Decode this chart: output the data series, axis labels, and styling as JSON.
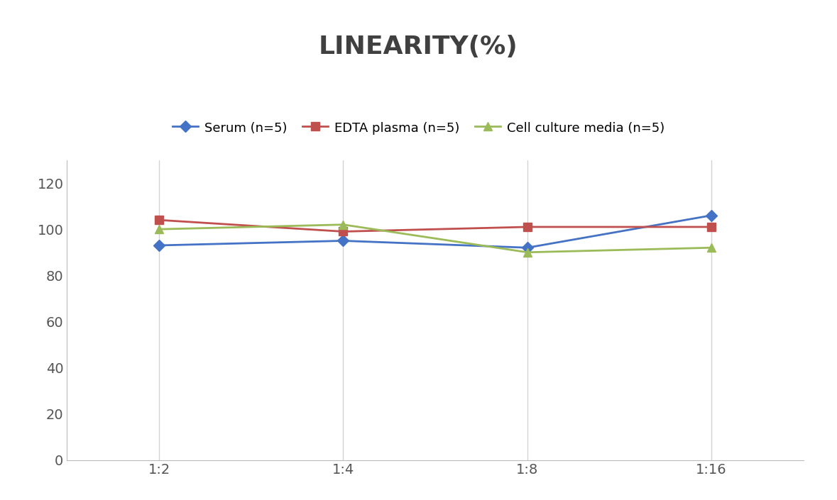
{
  "title": "LINEARITY(%)",
  "x_labels": [
    "1:2",
    "1:4",
    "1:8",
    "1:16"
  ],
  "x_positions": [
    0,
    1,
    2,
    3
  ],
  "series": [
    {
      "label": "Serum (n=5)",
      "values": [
        93,
        95,
        92,
        106
      ],
      "color": "#4472C4",
      "marker": "D",
      "markersize": 8,
      "linewidth": 2.0
    },
    {
      "label": "EDTA plasma (n=5)",
      "values": [
        104,
        99,
        101,
        101
      ],
      "color": "#C0504D",
      "marker": "s",
      "markersize": 8,
      "linewidth": 2.0
    },
    {
      "label": "Cell culture media (n=5)",
      "values": [
        100,
        102,
        90,
        92
      ],
      "color": "#9BBB59",
      "marker": "^",
      "markersize": 8,
      "linewidth": 2.0
    }
  ],
  "ylim": [
    0,
    130
  ],
  "yticks": [
    0,
    20,
    40,
    60,
    80,
    100,
    120
  ],
  "grid_color": "#D3D3D3",
  "background_color": "#FFFFFF",
  "title_fontsize": 26,
  "title_color": "#404040",
  "legend_fontsize": 13,
  "tick_fontsize": 14,
  "tick_color": "#555555"
}
